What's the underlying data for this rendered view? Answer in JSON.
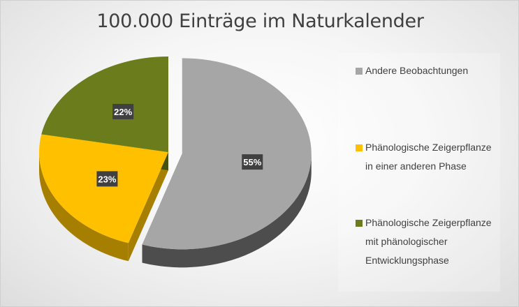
{
  "chart_data": {
    "type": "pie",
    "title": "100.000 Einträge im Naturkalender",
    "slices": [
      {
        "label": "Andere Beobachtungen",
        "value": 55,
        "data_label": "55%",
        "color": "#A6A6A6",
        "side_color": "#4d4d4d"
      },
      {
        "label": "Phänologische Zeigerpflanze in einer anderen Phase",
        "value": 23,
        "data_label": "23%",
        "color": "#FFC000",
        "side_color": "#a77f00"
      },
      {
        "label": "Phänologische Zeigerpflanze mit phänologischer Entwicklungsphase",
        "value": 22,
        "data_label": "22%",
        "color": "#6A7C1C",
        "side_color": "#46520f"
      }
    ],
    "legend_position": "right",
    "three_d": true,
    "exploded_slice": "Andere Beobachtungen"
  },
  "colors": {
    "data_label_bg": "#404040",
    "data_label_text": "#ffffff"
  }
}
